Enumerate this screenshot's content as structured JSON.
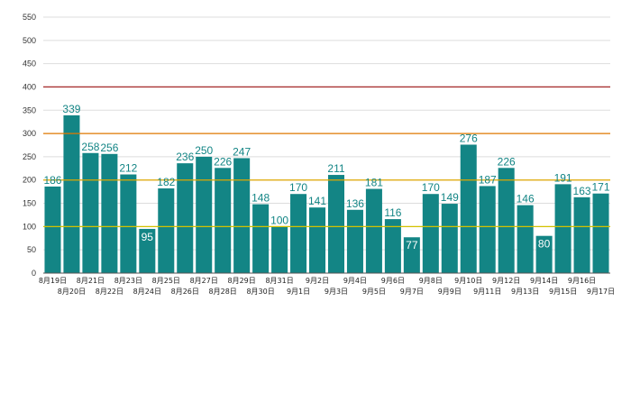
{
  "chart_data": {
    "type": "bar",
    "categories": [
      "8月19日",
      "8月20日",
      "8月21日",
      "8月22日",
      "8月23日",
      "8月24日",
      "8月25日",
      "8月26日",
      "8月27日",
      "8月28日",
      "8月29日",
      "8月30日",
      "8月31日",
      "9月1日",
      "9月2日",
      "9月3日",
      "9月4日",
      "9月5日",
      "9月6日",
      "9月7日",
      "9月8日",
      "9月9日",
      "9月10日",
      "9月11日",
      "9月12日",
      "9月13日",
      "9月14日",
      "9月15日",
      "9月16日",
      "9月17日"
    ],
    "values": [
      186,
      339,
      258,
      256,
      212,
      95,
      182,
      236,
      250,
      226,
      247,
      148,
      100,
      170,
      141,
      211,
      136,
      181,
      116,
      77,
      170,
      149,
      276,
      187,
      226,
      146,
      80,
      191,
      163,
      171
    ],
    "title": "",
    "xlabel": "",
    "ylabel": "",
    "ylim": [
      0,
      550
    ],
    "yticks": [
      0,
      50,
      100,
      150,
      200,
      250,
      300,
      350,
      400,
      450,
      500,
      550
    ],
    "grid": true,
    "legend": "none",
    "reference_lines": [
      {
        "y": 100,
        "color": "#d4c200"
      },
      {
        "y": 200,
        "color": "#e0a800"
      },
      {
        "y": 300,
        "color": "#e07800"
      },
      {
        "y": 400,
        "color": "#a83232"
      }
    ],
    "colors": {
      "bar": "#138585",
      "label": "#138585",
      "label_inside": "#ffffff",
      "grid": "#dddddd",
      "axis": "#555555"
    }
  }
}
